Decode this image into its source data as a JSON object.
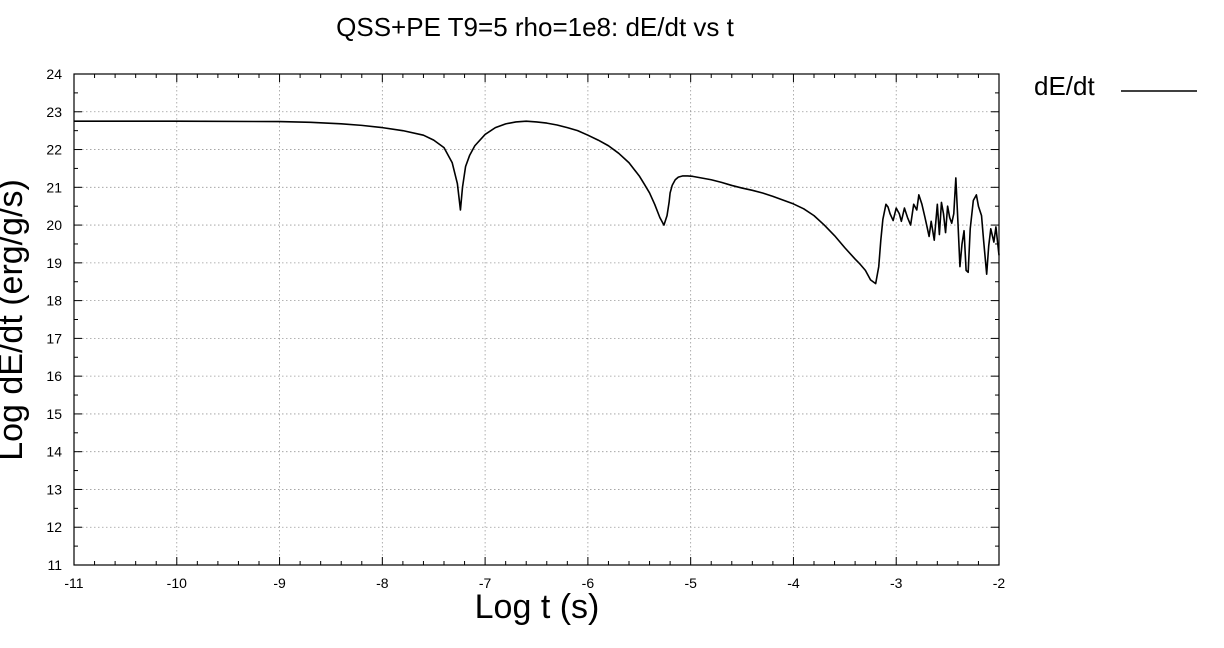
{
  "chart_data": {
    "type": "line",
    "title": "QSS+PE T9=5 rho=1e8: dE/dt vs t",
    "xlabel": "Log t (s)",
    "ylabel": "Log dE/dt (erg/g/s)",
    "xlim": [
      -11,
      -2
    ],
    "ylim": [
      11,
      24
    ],
    "xticks": [
      -11,
      -10,
      -9,
      -8,
      -7,
      -6,
      -5,
      -4,
      -3,
      -2
    ],
    "yticks": [
      11,
      12,
      13,
      14,
      15,
      16,
      17,
      18,
      19,
      20,
      21,
      22,
      23,
      24
    ],
    "grid": true,
    "legend_position": "top-right, outside plot",
    "series": [
      {
        "name": "dE/dt",
        "color": "#000000",
        "x": [
          -11.0,
          -10.0,
          -9.0,
          -8.7,
          -8.4,
          -8.2,
          -8.0,
          -7.8,
          -7.6,
          -7.5,
          -7.4,
          -7.32,
          -7.27,
          -7.24,
          -7.22,
          -7.19,
          -7.15,
          -7.1,
          -7.0,
          -6.9,
          -6.8,
          -6.7,
          -6.6,
          -6.5,
          -6.4,
          -6.3,
          -6.2,
          -6.1,
          -6.0,
          -5.9,
          -5.8,
          -5.7,
          -5.6,
          -5.5,
          -5.45,
          -5.4,
          -5.35,
          -5.3,
          -5.26,
          -5.23,
          -5.21,
          -5.2,
          -5.18,
          -5.15,
          -5.12,
          -5.08,
          -5.03,
          -4.98,
          -4.9,
          -4.8,
          -4.7,
          -4.6,
          -4.5,
          -4.4,
          -4.3,
          -4.2,
          -4.1,
          -4.0,
          -3.9,
          -3.8,
          -3.7,
          -3.6,
          -3.5,
          -3.4,
          -3.35,
          -3.3,
          -3.25,
          -3.2,
          -3.17,
          -3.15,
          -3.13,
          -3.1,
          -3.08,
          -3.06,
          -3.03,
          -3.0,
          -2.97,
          -2.95,
          -2.92,
          -2.89,
          -2.86,
          -2.83,
          -2.8,
          -2.78,
          -2.75,
          -2.72,
          -2.7,
          -2.68,
          -2.66,
          -2.63,
          -2.6,
          -2.58,
          -2.56,
          -2.54,
          -2.52,
          -2.5,
          -2.48,
          -2.46,
          -2.44,
          -2.42,
          -2.4,
          -2.38,
          -2.36,
          -2.34,
          -2.32,
          -2.3,
          -2.28,
          -2.25,
          -2.22,
          -2.2,
          -2.17,
          -2.15,
          -2.12,
          -2.1,
          -2.08,
          -2.05,
          -2.03,
          -2.0
        ],
        "y": [
          22.75,
          22.75,
          22.74,
          22.72,
          22.68,
          22.64,
          22.58,
          22.5,
          22.38,
          22.25,
          22.05,
          21.65,
          21.1,
          20.4,
          21.0,
          21.55,
          21.85,
          22.1,
          22.4,
          22.58,
          22.68,
          22.73,
          22.75,
          22.73,
          22.7,
          22.65,
          22.58,
          22.5,
          22.38,
          22.25,
          22.1,
          21.9,
          21.65,
          21.3,
          21.08,
          20.85,
          20.55,
          20.2,
          20.0,
          20.25,
          20.6,
          20.85,
          21.05,
          21.2,
          21.27,
          21.3,
          21.3,
          21.29,
          21.25,
          21.2,
          21.13,
          21.05,
          20.98,
          20.92,
          20.85,
          20.76,
          20.66,
          20.56,
          20.43,
          20.25,
          20.0,
          19.72,
          19.4,
          19.1,
          18.96,
          18.8,
          18.55,
          18.45,
          18.9,
          19.6,
          20.15,
          20.55,
          20.48,
          20.3,
          20.12,
          20.45,
          20.3,
          20.1,
          20.45,
          20.2,
          20.0,
          20.55,
          20.4,
          20.8,
          20.55,
          20.2,
          19.95,
          19.7,
          20.1,
          19.6,
          20.55,
          19.75,
          20.6,
          20.3,
          19.8,
          20.5,
          20.2,
          20.05,
          20.3,
          21.25,
          20.1,
          18.9,
          19.5,
          19.85,
          18.8,
          18.75,
          19.9,
          20.65,
          20.8,
          20.5,
          20.25,
          19.6,
          18.7,
          19.45,
          19.9,
          19.55,
          19.95,
          19.2
        ]
      }
    ],
    "legend": [
      {
        "label": "dE/dt"
      }
    ]
  }
}
